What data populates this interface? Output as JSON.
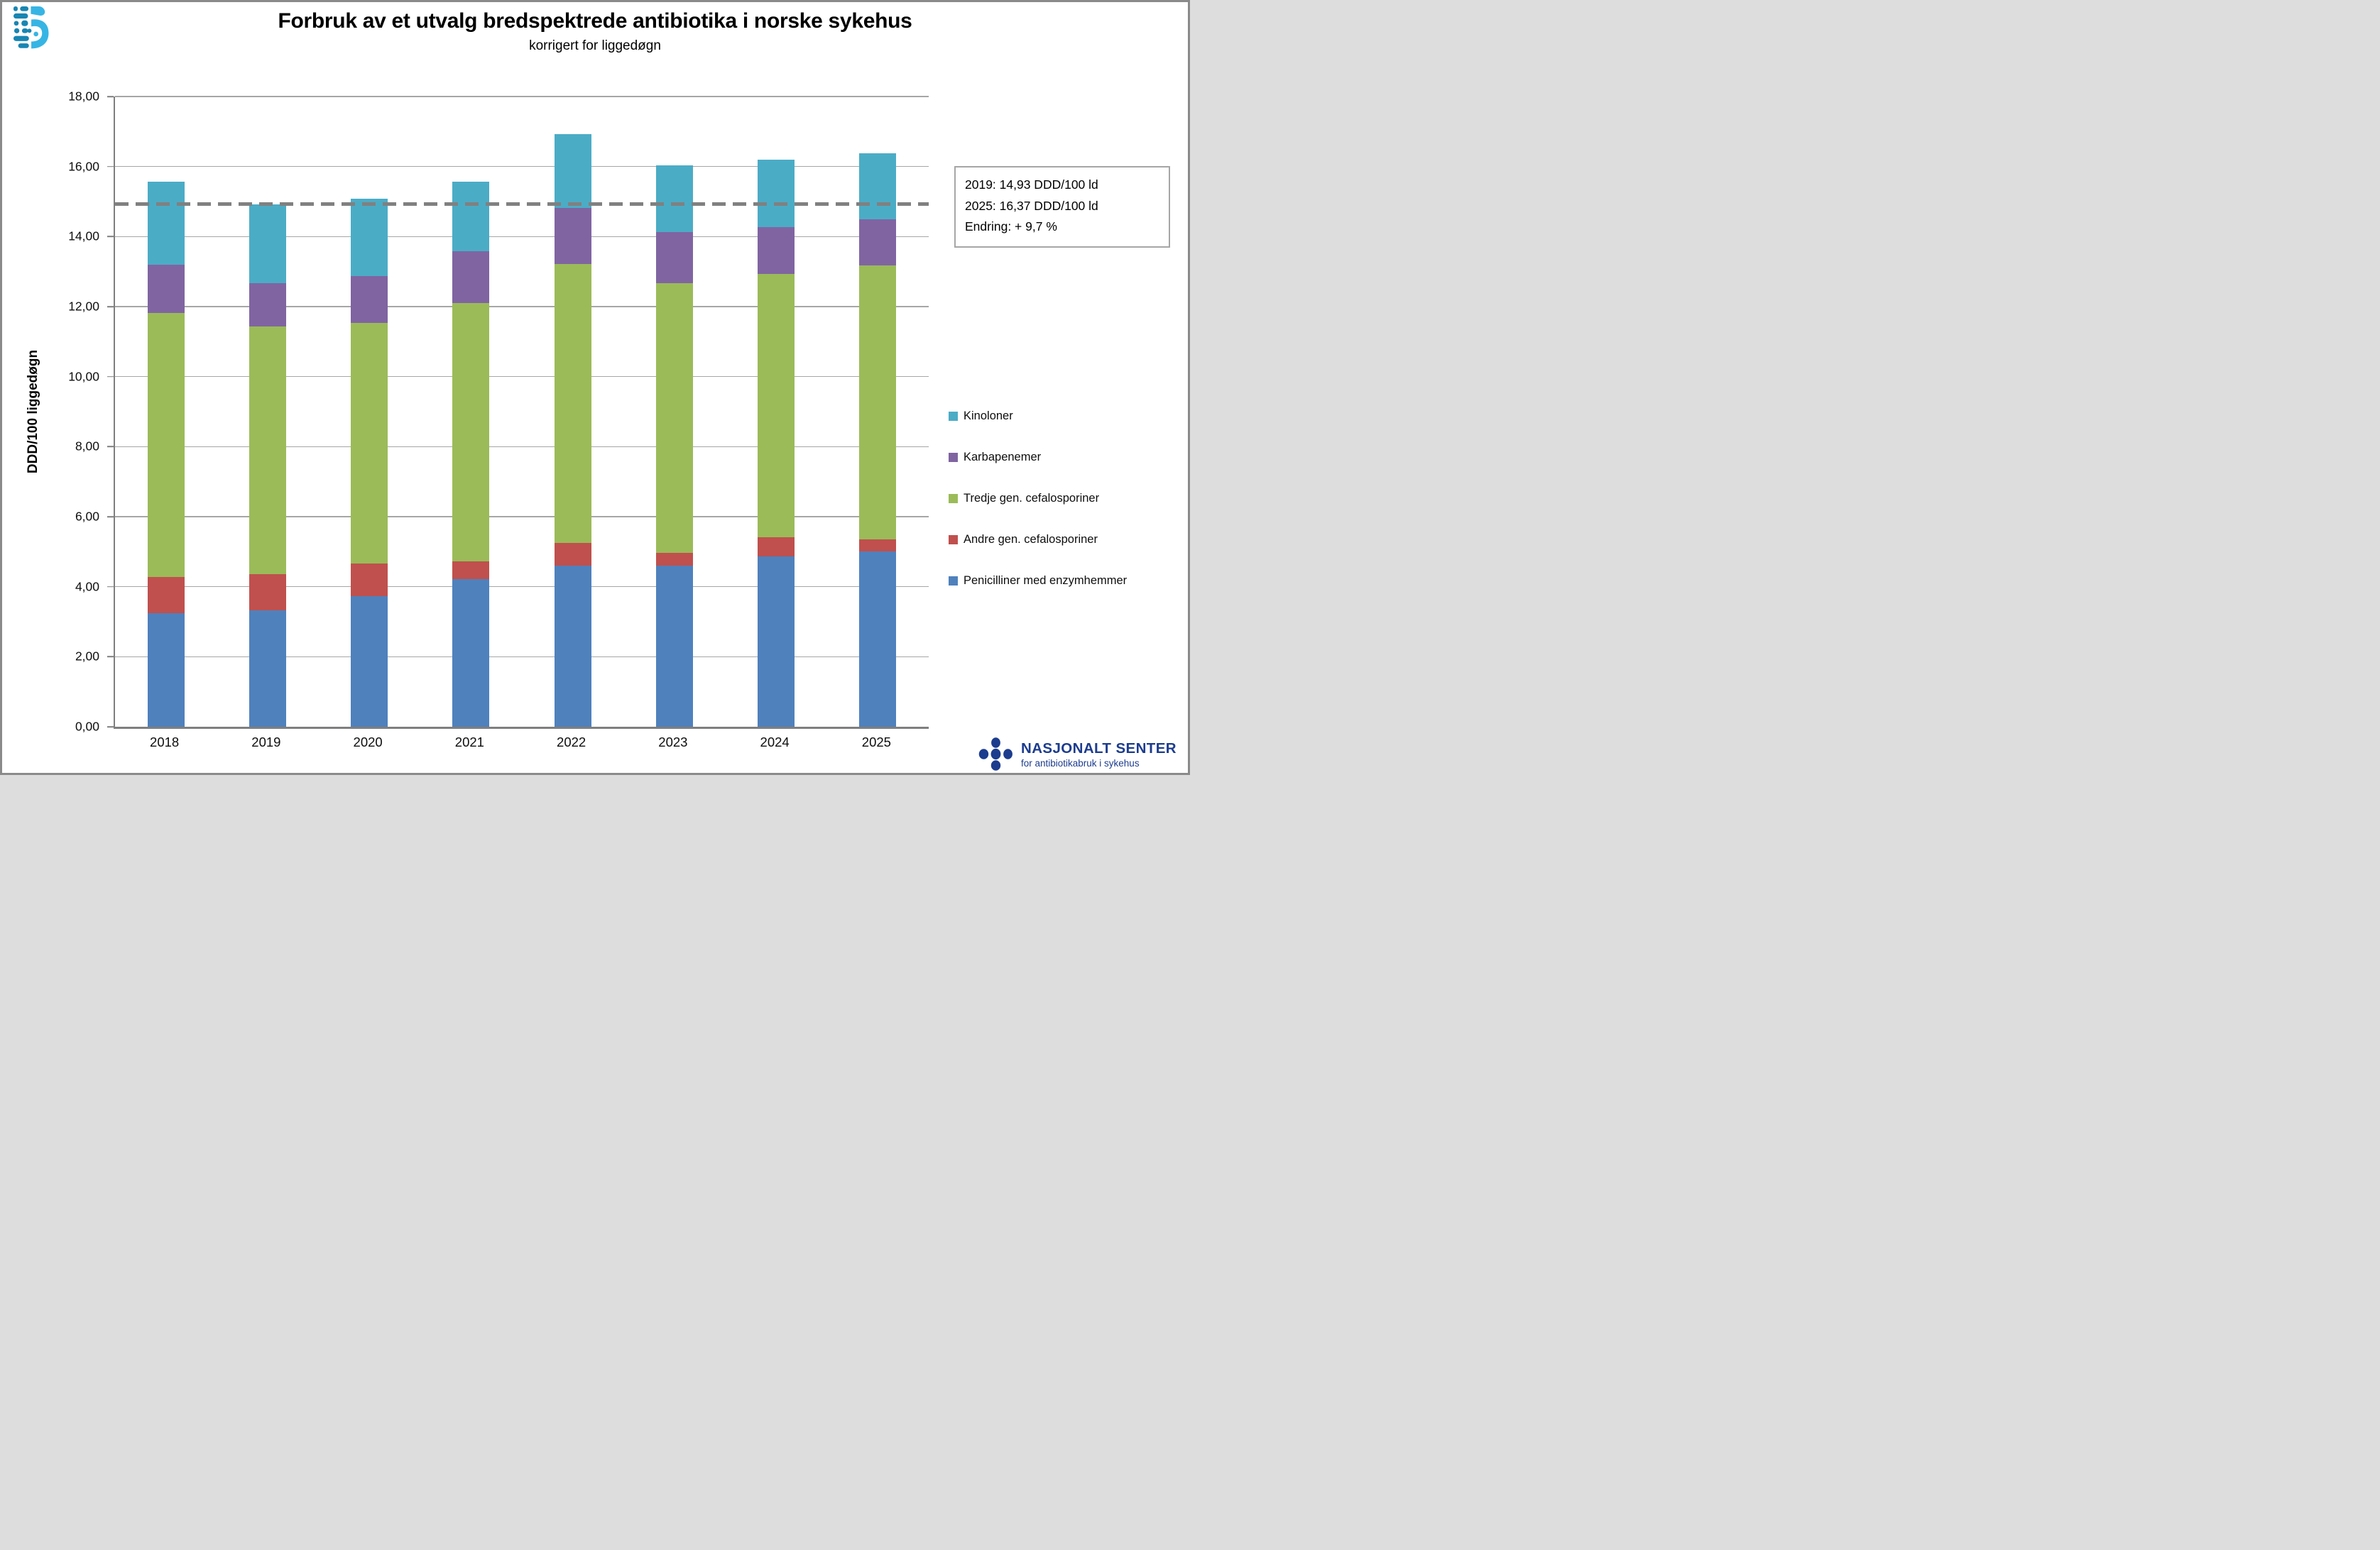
{
  "header": {
    "title": "Forbruk av et utvalg bredspektrede antibiotika i norske sykehus",
    "subtitle": "korrigert for liggedøgn"
  },
  "annotation_box": {
    "lines": [
      "2019: 14,93 DDD/100 ld",
      "2025: 16,37 DDD/100 ld",
      "Endring: + 9,7 %"
    ],
    "border_color": "#A6A6A6"
  },
  "chart_data": {
    "type": "bar",
    "stacked": true,
    "title": "Forbruk av et utvalg bredspektrede antibiotika i norske sykehus",
    "subtitle": "korrigert for liggedøgn",
    "categories": [
      "2018",
      "2019",
      "2020",
      "2021",
      "2022",
      "2023",
      "2024",
      "2025"
    ],
    "series": [
      {
        "name": "Penicilliner med enzymhemmer",
        "color": "#4F81BD",
        "values": [
          3.25,
          3.32,
          3.72,
          4.22,
          4.61,
          4.6,
          4.86,
          5.01
        ]
      },
      {
        "name": "Andre gen. cefalosporiner",
        "color": "#C0504D",
        "values": [
          1.02,
          1.04,
          0.94,
          0.5,
          0.65,
          0.37,
          0.55,
          0.34
        ]
      },
      {
        "name": "Tredje gen. cefalosporiner",
        "color": "#9BBB59",
        "values": [
          7.55,
          7.08,
          6.88,
          7.38,
          7.96,
          7.69,
          7.52,
          7.83
        ]
      },
      {
        "name": "Karbapenemer",
        "color": "#8064A2",
        "values": [
          1.37,
          1.22,
          1.34,
          1.49,
          1.6,
          1.46,
          1.34,
          1.31
        ]
      },
      {
        "name": "Kinoloner",
        "color": "#4BACC6",
        "values": [
          2.37,
          2.27,
          2.21,
          1.97,
          2.1,
          1.91,
          1.92,
          1.88
        ]
      }
    ],
    "totals": [
      15.56,
      14.93,
      15.09,
      15.56,
      16.92,
      16.03,
      16.19,
      16.37
    ],
    "xlabel": "",
    "ylabel": "DDD/100 liggedøgn",
    "ylim": [
      0,
      18
    ],
    "ytick_step": 2,
    "ytick_labels": [
      "0,00",
      "2,00",
      "4,00",
      "6,00",
      "8,00",
      "10,00",
      "12,00",
      "14,00",
      "16,00",
      "18,00"
    ],
    "grid": true,
    "legend_position": "right",
    "legend": [
      "Kinoloner",
      "Karbapenemer",
      "Tredje gen. cefalosporiner",
      "Andre gen. cefalosporiner",
      "Penicilliner med enzymhemmer"
    ],
    "reference_line": {
      "value": 14.93,
      "color": "#808080",
      "style": "dashed"
    }
  },
  "footer_logo": {
    "line1": "NASJONALT SENTER",
    "line2": "for antibiotikabruk i sykehus",
    "color": "#1C3C8E"
  },
  "colors": {
    "gridline": "#A6A6A6",
    "axis": "#7F7F7F",
    "page_border": "#8A8A8A",
    "logo_light_blue": "#36B5E4",
    "logo_dark_blue": "#1886B2"
  }
}
